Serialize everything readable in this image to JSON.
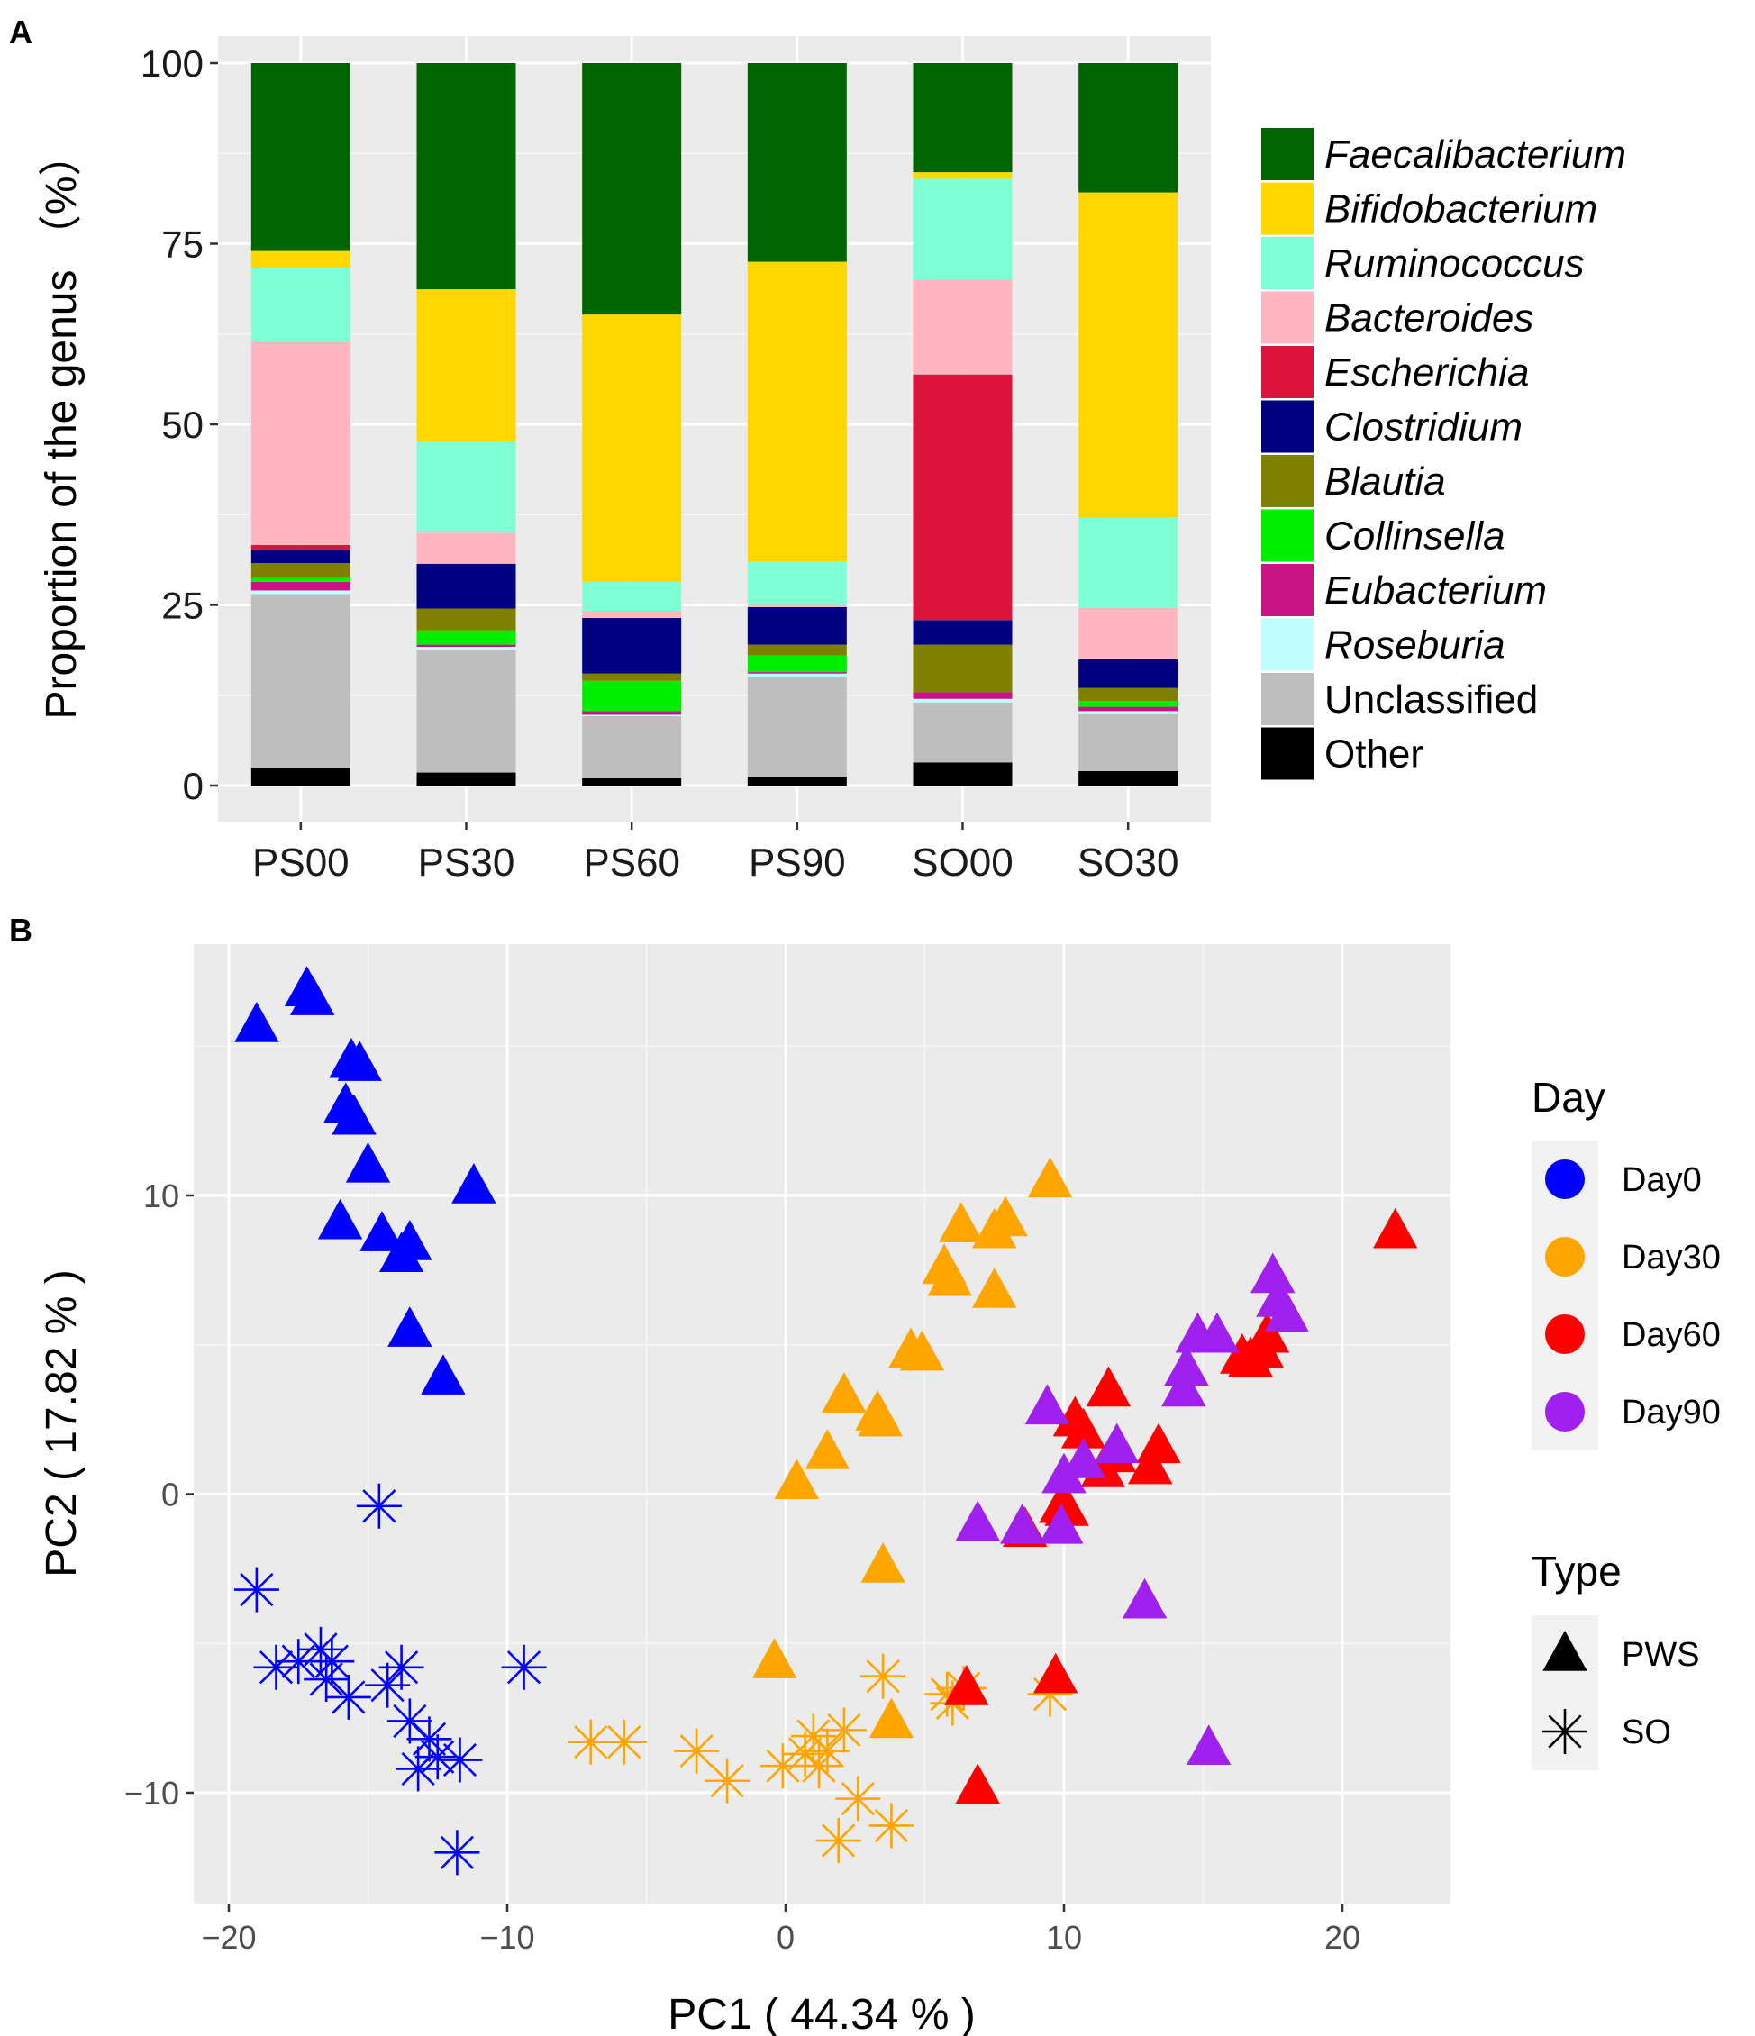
{
  "chart_data": [
    {
      "panel": "A",
      "type": "bar",
      "stacked": true,
      "ylabel": "Proportion of the genus （%）",
      "xlabel": "",
      "ylim": [
        0,
        100
      ],
      "yticks": [
        0,
        25,
        50,
        75,
        100
      ],
      "categories": [
        "PS00",
        "PS30",
        "PS60",
        "PS90",
        "SO00",
        "SO30"
      ],
      "legend_position": "right",
      "series": [
        {
          "name": "Other",
          "italic": false,
          "color": "#000000",
          "values": [
            2.5,
            1.8,
            1.0,
            1.2,
            3.2,
            2.0
          ]
        },
        {
          "name": "Unclassified",
          "italic": false,
          "color": "#BEBEBE",
          "values": [
            24.0,
            17.0,
            8.6,
            13.8,
            8.3,
            8.0
          ]
        },
        {
          "name": "Roseburia",
          "italic": true,
          "color": "#BFFFFF",
          "values": [
            0.5,
            0.4,
            0.2,
            0.5,
            0.5,
            0.3
          ]
        },
        {
          "name": "Eubacterium",
          "italic": true,
          "color": "#C71585",
          "values": [
            1.2,
            0.3,
            0.5,
            0.2,
            0.9,
            0.6
          ]
        },
        {
          "name": "Collinsella",
          "italic": true,
          "color": "#00EE00",
          "values": [
            0.5,
            2.0,
            4.2,
            2.3,
            0.0,
            0.8
          ]
        },
        {
          "name": "Blautia",
          "italic": true,
          "color": "#808000",
          "values": [
            2.1,
            3.0,
            1.0,
            1.5,
            6.6,
            1.8
          ]
        },
        {
          "name": "Clostridium",
          "italic": true,
          "color": "#000080",
          "values": [
            1.8,
            6.2,
            7.7,
            5.2,
            3.4,
            4.0
          ]
        },
        {
          "name": "Escherichia",
          "italic": true,
          "color": "#DC143C",
          "values": [
            0.7,
            0.0,
            0.0,
            0.0,
            34.0,
            0.0
          ]
        },
        {
          "name": "Bacteroides",
          "italic": true,
          "color": "#FFB6C1",
          "values": [
            28.2,
            4.3,
            1.0,
            0.3,
            13.1,
            7.1
          ]
        },
        {
          "name": "Ruminococcus",
          "italic": true,
          "color": "#7FFFD4",
          "values": [
            10.2,
            12.7,
            4.0,
            6.0,
            14.0,
            12.5
          ]
        },
        {
          "name": "Bifidobacterium",
          "italic": true,
          "color": "#FFD700",
          "values": [
            2.3,
            21.0,
            37.0,
            41.5,
            0.9,
            45.0
          ]
        },
        {
          "name": "Faecalibacterium",
          "italic": true,
          "color": "#006400",
          "values": [
            26.0,
            31.3,
            34.8,
            27.5,
            15.1,
            17.9
          ]
        }
      ]
    },
    {
      "panel": "B",
      "type": "scatter",
      "xlabel": "PC1 ( 44.34 % )",
      "ylabel": "PC2 ( 17.82 % )",
      "xlim": [
        -21.3,
        23.7
      ],
      "ylim": [
        -13.0,
        18.3
      ],
      "xticks": [
        -20,
        -10,
        0,
        10,
        20
      ],
      "yticks": [
        -10,
        0,
        10
      ],
      "legend_day": {
        "title": "Day",
        "items": [
          {
            "label": "Day0",
            "color": "#0000FF"
          },
          {
            "label": "Day30",
            "color": "#FFA500"
          },
          {
            "label": "Day60",
            "color": "#FF0000"
          },
          {
            "label": "Day90",
            "color": "#A020F0"
          }
        ]
      },
      "legend_type": {
        "title": "Type",
        "items": [
          {
            "label": "PWS",
            "shape": "triangle"
          },
          {
            "label": "SO",
            "shape": "asterisk"
          }
        ]
      },
      "series": [
        {
          "name": "Day0 PWS",
          "day": "Day0",
          "type": "PWS",
          "color": "#0000FF",
          "points": [
            [
              -19,
              15.7
            ],
            [
              -17.2,
              16.9
            ],
            [
              -17,
              16.6
            ],
            [
              -15.6,
              14.5
            ],
            [
              -15.3,
              14.4
            ],
            [
              -15.8,
              13
            ],
            [
              -15.5,
              12.6
            ],
            [
              -15,
              11
            ],
            [
              -16,
              9.1
            ],
            [
              -14.5,
              8.7
            ],
            [
              -13.8,
              8
            ],
            [
              -13.5,
              8.4
            ],
            [
              -13.5,
              5.5
            ],
            [
              -12.3,
              3.9
            ],
            [
              -11.2,
              10.3
            ]
          ]
        },
        {
          "name": "Day0 SO",
          "day": "Day0",
          "type": "SO",
          "color": "#0000FF",
          "points": [
            [
              -14.6,
              -0.4
            ],
            [
              -19,
              -3.2
            ],
            [
              -18.3,
              -5.8
            ],
            [
              -17.5,
              -5.6
            ],
            [
              -16.7,
              -5.2
            ],
            [
              -16.3,
              -5.6
            ],
            [
              -16.5,
              -6.2
            ],
            [
              -15.7,
              -6.8
            ],
            [
              -14.3,
              -6.4
            ],
            [
              -13.8,
              -5.8
            ],
            [
              -13.5,
              -7.6
            ],
            [
              -12.8,
              -8.2
            ],
            [
              -12.5,
              -8.8
            ],
            [
              -13.2,
              -9.2
            ],
            [
              -11.7,
              -8.9
            ],
            [
              -9.4,
              -5.8
            ],
            [
              -11.8,
              -12
            ]
          ]
        },
        {
          "name": "Day30 PWS",
          "day": "Day30",
          "type": "PWS",
          "color": "#FFA500",
          "points": [
            [
              9.5,
              10.5
            ],
            [
              6.3,
              9
            ],
            [
              7.5,
              8.8
            ],
            [
              7.9,
              9.2
            ],
            [
              5.7,
              7.6
            ],
            [
              5.9,
              7.2
            ],
            [
              7.5,
              6.8
            ],
            [
              4.5,
              4.8
            ],
            [
              4.9,
              4.7
            ],
            [
              2.1,
              3.3
            ],
            [
              3.3,
              2.7
            ],
            [
              3.4,
              2.5
            ],
            [
              1.5,
              1.4
            ],
            [
              0.4,
              0.4
            ],
            [
              3.5,
              -2.4
            ],
            [
              -0.4,
              -5.6
            ],
            [
              3.8,
              -7.6
            ]
          ]
        },
        {
          "name": "Day30 SO",
          "day": "Day30",
          "type": "SO",
          "color": "#FFA500",
          "points": [
            [
              3.5,
              -6.1
            ],
            [
              5.8,
              -6.7
            ],
            [
              6,
              -7
            ],
            [
              6.4,
              -6.5
            ],
            [
              9.5,
              -6.7
            ],
            [
              -7,
              -8.3
            ],
            [
              -5.8,
              -8.3
            ],
            [
              -3.2,
              -8.6
            ],
            [
              -2.1,
              -9.6
            ],
            [
              -0.1,
              -9.1
            ],
            [
              0.7,
              -8.7
            ],
            [
              1,
              -8.1
            ],
            [
              1.5,
              -8.6
            ],
            [
              2.1,
              -7.9
            ],
            [
              1.2,
              -9.1
            ],
            [
              2.6,
              -10.2
            ],
            [
              1.9,
              -11.6
            ],
            [
              3.8,
              -11.1
            ]
          ]
        },
        {
          "name": "Day60 PWS",
          "day": "Day60",
          "type": "PWS",
          "color": "#FF0000",
          "points": [
            [
              21.9,
              8.8
            ],
            [
              16.4,
              4.6
            ],
            [
              16.7,
              4.5
            ],
            [
              17.1,
              4.8
            ],
            [
              17.3,
              5.3
            ],
            [
              11.6,
              3.5
            ],
            [
              10.4,
              2.5
            ],
            [
              10.7,
              2.1
            ],
            [
              11.8,
              1.3
            ],
            [
              13.4,
              1.6
            ],
            [
              13.1,
              0.9
            ],
            [
              11.4,
              0.8
            ],
            [
              9.9,
              -0.4
            ],
            [
              10.1,
              -0.5
            ],
            [
              8.6,
              -1.2
            ],
            [
              6.5,
              -6.5
            ],
            [
              9.7,
              -6.1
            ],
            [
              6.9,
              -9.8
            ]
          ]
        },
        {
          "name": "Day90 PWS",
          "day": "Day90",
          "type": "PWS",
          "color": "#A020F0",
          "points": [
            [
              17.5,
              7.3
            ],
            [
              17.7,
              6.5
            ],
            [
              18,
              6
            ],
            [
              15.5,
              5.3
            ],
            [
              14.8,
              5.3
            ],
            [
              14.4,
              4.2
            ],
            [
              14.3,
              3.5
            ],
            [
              9.4,
              2.9
            ],
            [
              11.9,
              1.6
            ],
            [
              10.7,
              1.1
            ],
            [
              10,
              0.6
            ],
            [
              6.9,
              -1
            ],
            [
              8.5,
              -1.1
            ],
            [
              9.9,
              -1.1
            ],
            [
              12.9,
              -3.6
            ],
            [
              15.2,
              -8.5
            ]
          ]
        }
      ]
    }
  ],
  "labels": {
    "panel_a": "A",
    "panel_b": "B"
  }
}
